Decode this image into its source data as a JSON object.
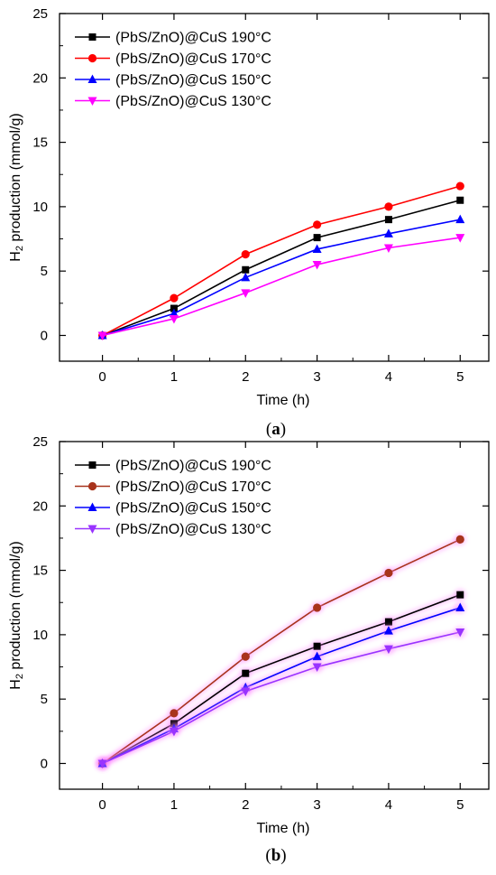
{
  "panels": [
    {
      "label": "a",
      "xlabel": "Time (h)",
      "ylabel_main": "H",
      "ylabel_sub": "2",
      "ylabel_rest": " production (mmol/g)",
      "ticks_x": [
        "0",
        "1",
        "2",
        "3",
        "4",
        "5"
      ],
      "ticks_y": [
        "0",
        "5",
        "10",
        "15",
        "20",
        "25"
      ]
    },
    {
      "label": "b",
      "xlabel": "Time (h)",
      "ylabel_main": "H",
      "ylabel_sub": "2",
      "ylabel_rest": " production (mmol/g)",
      "ticks_x": [
        "0",
        "1",
        "2",
        "3",
        "4",
        "5"
      ],
      "ticks_y": [
        "0",
        "5",
        "10",
        "15",
        "20",
        "25"
      ]
    }
  ],
  "chart_data": [
    {
      "type": "line",
      "x": [
        0,
        1,
        2,
        3,
        4,
        5
      ],
      "xlim": [
        -0.6,
        5.4
      ],
      "ylim": [
        -2,
        25
      ],
      "xlabel": "Time (h)",
      "ylabel": "H2 production (mmol/g)",
      "legend_position": "top-left",
      "grid": false,
      "series": [
        {
          "name": "(PbS/ZnO)@CuS 190°C",
          "marker": "square",
          "color": "#000000",
          "glow": false,
          "values": [
            0,
            2.1,
            5.1,
            7.6,
            9.0,
            10.5
          ]
        },
        {
          "name": "(PbS/ZnO)@CuS 170°C",
          "marker": "circle",
          "color": "#ff0000",
          "glow": false,
          "values": [
            0,
            2.9,
            6.3,
            8.6,
            10.0,
            11.6
          ]
        },
        {
          "name": "(PbS/ZnO)@CuS 150°C",
          "marker": "triangle-up",
          "color": "#0000ff",
          "glow": false,
          "values": [
            0,
            1.7,
            4.5,
            6.7,
            7.9,
            9.0
          ]
        },
        {
          "name": "(PbS/ZnO)@CuS 130°C",
          "marker": "triangle-down",
          "color": "#ff00ff",
          "glow": false,
          "values": [
            0,
            1.3,
            3.3,
            5.5,
            6.8,
            7.6
          ]
        }
      ]
    },
    {
      "type": "line",
      "x": [
        0,
        1,
        2,
        3,
        4,
        5
      ],
      "xlim": [
        -0.6,
        5.4
      ],
      "ylim": [
        -2,
        25
      ],
      "xlabel": "Time (h)",
      "ylabel": "H2 production (mmol/g)",
      "legend_position": "top-left",
      "grid": false,
      "series": [
        {
          "name": "(PbS/ZnO)@CuS 190°C",
          "marker": "square",
          "color": "#000000",
          "glow": true,
          "values": [
            0,
            3.1,
            7.0,
            9.1,
            11.0,
            13.1
          ]
        },
        {
          "name": "(PbS/ZnO)@CuS 170°C",
          "marker": "circle",
          "color": "#a8331c",
          "glow": true,
          "values": [
            0,
            3.9,
            8.3,
            12.1,
            14.8,
            17.4
          ]
        },
        {
          "name": "(PbS/ZnO)@CuS 150°C",
          "marker": "triangle-up",
          "color": "#0000ff",
          "glow": true,
          "values": [
            0,
            2.7,
            5.9,
            8.3,
            10.3,
            12.1
          ]
        },
        {
          "name": "(PbS/ZnO)@CuS 130°C",
          "marker": "triangle-down",
          "color": "#9933ff",
          "glow": true,
          "values": [
            0,
            2.5,
            5.6,
            7.5,
            8.9,
            10.2
          ]
        }
      ]
    }
  ]
}
